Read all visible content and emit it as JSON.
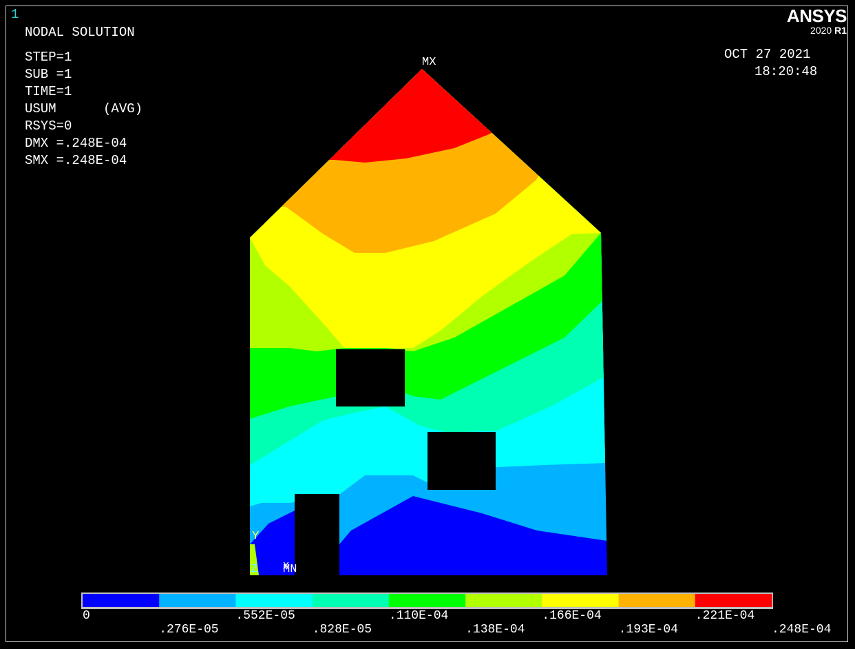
{
  "window_number": "1",
  "brand": {
    "name": "ANSYS",
    "version": "2020",
    "release": "R1"
  },
  "solution_info": [
    "NODAL SOLUTION"
  ],
  "step_info": [
    "STEP=1",
    "SUB =1",
    "TIME=1",
    "USUM      (AVG)",
    "RSYS=0",
    "DMX =.248E-04",
    "SMX =.248E-04"
  ],
  "date": "OCT 27 2021",
  "time": "18:20:48",
  "markers": {
    "max": "MX",
    "min": "MN",
    "axis_y": "Y",
    "axis_z": "Z",
    "axis_x": "X"
  },
  "legend": {
    "colors": [
      "#0000ff",
      "#00b2ff",
      "#00ffff",
      "#00ffb2",
      "#00ff00",
      "#b2ff00",
      "#ffff00",
      "#ffb200",
      "#ff0000"
    ],
    "labels_bottom_row": [
      "0",
      ".552E-05",
      ".110E-04",
      ".166E-04",
      ".221E-04"
    ],
    "labels_top_row": [
      ".276E-05",
      ".828E-05",
      ".138E-04",
      ".193E-04",
      ".248E-04"
    ]
  }
}
